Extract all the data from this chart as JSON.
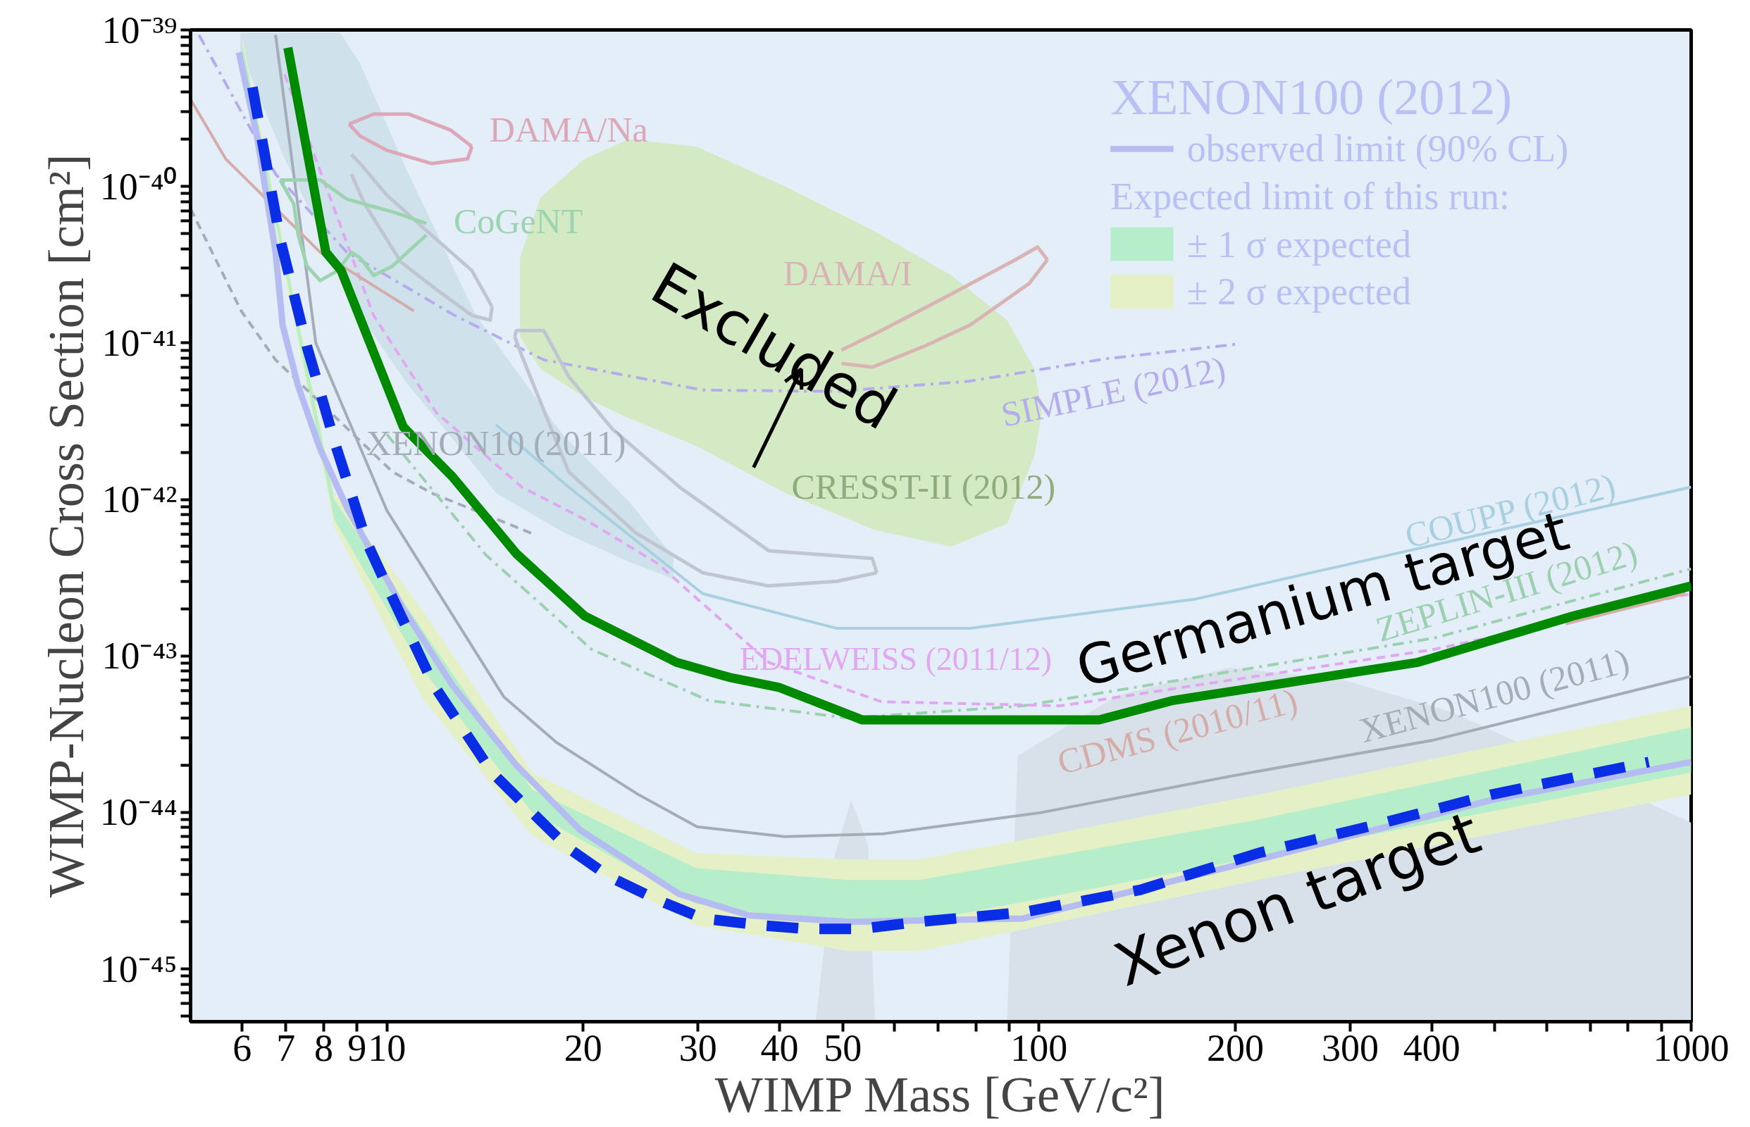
{
  "chart_data": {
    "type": "line",
    "xlabel": "WIMP Mass [GeV/c²]",
    "ylabel": "WIMP-Nucleon Cross Section [cm²]",
    "legend_title": "XENON100 (2012)",
    "legend": "top right",
    "grid": false,
    "log": "xy",
    "xlim": [
      5,
      1000
    ],
    "ylim": [
      4.6e-46,
      1e-39
    ],
    "xticks": [
      6,
      7,
      8,
      9,
      10,
      20,
      30,
      40,
      50,
      {
        "value": 60,
        "label": null
      },
      {
        "value": 70,
        "label": null
      },
      {
        "value": 80,
        "label": null
      },
      {
        "value": 90,
        "label": null
      },
      100,
      200,
      300,
      400,
      {
        "value": 500,
        "label": null
      },
      {
        "value": 600,
        "label": null
      },
      {
        "value": 700,
        "label": null
      },
      {
        "value": 800,
        "label": null
      },
      {
        "value": 900,
        "label": null
      },
      1000
    ],
    "yticks": [
      {
        "value": 5e-46,
        "label": null
      },
      {
        "value": 6e-46,
        "label": null
      },
      {
        "value": 7e-46,
        "label": null
      },
      {
        "value": 8e-46,
        "label": null
      },
      {
        "value": 9e-46,
        "label": null
      },
      {
        "value": 1e-45,
        "label": "10⁻⁴⁵"
      },
      {
        "value": 2e-45,
        "label": null
      },
      {
        "value": 3e-45,
        "label": null
      },
      {
        "value": 4e-45,
        "label": null
      },
      {
        "value": 5e-45,
        "label": null
      },
      {
        "value": 6e-45,
        "label": null
      },
      {
        "value": 7e-45,
        "label": null
      },
      {
        "value": 8e-45,
        "label": null
      },
      {
        "value": 9e-45,
        "label": null
      },
      {
        "value": 1e-44,
        "label": "10⁻⁴⁴"
      },
      {
        "value": 2e-44,
        "label": null
      },
      {
        "value": 3e-44,
        "label": null
      },
      {
        "value": 4e-44,
        "label": null
      },
      {
        "value": 5e-44,
        "label": null
      },
      {
        "value": 6e-44,
        "label": null
      },
      {
        "value": 7e-44,
        "label": null
      },
      {
        "value": 8e-44,
        "label": null
      },
      {
        "value": 9e-44,
        "label": null
      },
      {
        "value": 1e-43,
        "label": "10⁻⁴³"
      },
      {
        "value": 2e-43,
        "label": null
      },
      {
        "value": 3e-43,
        "label": null
      },
      {
        "value": 4e-43,
        "label": null
      },
      {
        "value": 5e-43,
        "label": null
      },
      {
        "value": 6e-43,
        "label": null
      },
      {
        "value": 7e-43,
        "label": null
      },
      {
        "value": 8e-43,
        "label": null
      },
      {
        "value": 9e-43,
        "label": null
      },
      {
        "value": 1e-42,
        "label": "10⁻⁴²"
      },
      {
        "value": 2e-42,
        "label": null
      },
      {
        "value": 3e-42,
        "label": null
      },
      {
        "value": 4e-42,
        "label": null
      },
      {
        "value": 5e-42,
        "label": null
      },
      {
        "value": 6e-42,
        "label": null
      },
      {
        "value": 7e-42,
        "label": null
      },
      {
        "value": 8e-42,
        "label": null
      },
      {
        "value": 9e-42,
        "label": null
      },
      {
        "value": 1e-41,
        "label": "10⁻⁴¹"
      },
      {
        "value": 2e-41,
        "label": null
      },
      {
        "value": 3e-41,
        "label": null
      },
      {
        "value": 4e-41,
        "label": null
      },
      {
        "value": 5e-41,
        "label": null
      },
      {
        "value": 6e-41,
        "label": null
      },
      {
        "value": 7e-41,
        "label": null
      },
      {
        "value": 8e-41,
        "label": null
      },
      {
        "value": 9e-41,
        "label": null
      },
      {
        "value": 1e-40,
        "label": "10⁻⁴⁰"
      },
      {
        "value": 2e-40,
        "label": null
      },
      {
        "value": 3e-40,
        "label": null
      },
      {
        "value": 4e-40,
        "label": null
      },
      {
        "value": 5e-40,
        "label": null
      },
      {
        "value": 6e-40,
        "label": null
      },
      {
        "value": 7e-40,
        "label": null
      },
      {
        "value": 8e-40,
        "label": null
      },
      {
        "value": 9e-40,
        "label": null
      },
      {
        "value": 1e-39,
        "label": "10⁻³⁹"
      }
    ],
    "annotations": [
      "Excluded",
      "Expected limit of this run:",
      "CRESST-II (2012)"
    ],
    "series": [
      {
        "type": "area",
        "color": "#d8e0ea",
        "x": [
          45.5,
          48.6,
          51.5,
          54.7,
          56
        ],
        "values": [
          4.8e-46,
          5.3e-45,
          1.2e-44,
          6.2e-45,
          4.8e-46
        ]
      },
      {
        "type": "area",
        "color": "#d8e0ea",
        "x": [
          89.3,
          92.8,
          132,
          196,
          290,
          429,
          1000
        ],
        "values": [
          4.8e-46,
          2.3e-44,
          5.6e-44,
          8.4e-44,
          7.1e-44,
          4.4e-44,
          8.6e-45
        ]
      },
      {
        "type": "area",
        "color": "#cfe2ec",
        "x": [
          5.96,
          6.97,
          8.48,
          9.1,
          10.7,
          13.7,
          14.7,
          18.6,
          23.5,
          27.5
        ],
        "values": [
          null,
          null,
          null,
          null,
          null,
          null,
          null,
          null,
          null,
          null
        ],
        "lower": [
          7.3e-40,
          1.5e-40,
          2.8e-41,
          1.5e-41,
          5.6e-42,
          1.6e-42,
          1.1e-42,
          6.2e-43,
          4e-43,
          3.1e-43
        ],
        "upper": [
          9.6e-40,
          9.6e-40,
          9.6e-40,
          6.1e-40,
          1.3e-40,
          1.5e-41,
          1e-41,
          2.6e-42,
          9.7e-43,
          4.3e-43
        ]
      },
      {
        "type": "area",
        "color": "#d4eac4",
        "x": [
          16.0,
          17.2,
          20.1,
          23.5,
          29.8,
          40.8,
          55.8,
          73.4,
          89.3,
          98.4,
          101
        ],
        "values": [
          null,
          null,
          null,
          null,
          null,
          null,
          null,
          null,
          null,
          null,
          null
        ],
        "lower": [
          1.1e-41,
          6.8e-42,
          4.5e-42,
          3.3e-42,
          2.2e-42,
          1.1e-42,
          6.4e-43,
          5e-43,
          7e-43,
          1.9e-42,
          3.6e-42
        ],
        "upper": [
          3.5e-41,
          8.5e-41,
          1.5e-40,
          2e-40,
          1.8e-40,
          1e-40,
          5.2e-41,
          2.7e-41,
          1.4e-41,
          6.8e-42,
          3.6e-42
        ]
      },
      {
        "type": "area",
        "name": "± 2 σ expected",
        "color": "#e6f0c6",
        "x": [
          6.0,
          8.3,
          11.3,
          16.7,
          29.8,
          51,
          65.5,
          217,
          1000
        ],
        "values": [
          null,
          null,
          null,
          null,
          null,
          null,
          null,
          null,
          null
        ],
        "lower": [
          6.5e-40,
          6.7e-43,
          5.5e-44,
          7.1e-45,
          1.9e-45,
          1.3e-45,
          1.3e-45,
          3.7e-45,
          1.3e-44
        ],
        "upper": [
          9e-40,
          1.1e-42,
          2e-43,
          1.8e-44,
          5.5e-45,
          5e-45,
          5e-45,
          1.3e-44,
          4.8e-44
        ]
      },
      {
        "type": "area",
        "name": "± 1 σ expected",
        "color": "#b6eecb",
        "x": [
          6.0,
          8.3,
          11.3,
          16.7,
          29.8,
          51,
          65.5,
          217,
          1000
        ],
        "values": [
          null,
          null,
          null,
          null,
          null,
          null,
          null,
          null,
          null
        ],
        "lower": [
          7.1e-40,
          7.5e-43,
          8.4e-44,
          1e-44,
          2.6e-45,
          1.9e-45,
          2e-45,
          5.2e-45,
          1.8e-44
        ],
        "upper": [
          8.3e-40,
          1e-42,
          1.5e-43,
          1.4e-44,
          4.4e-45,
          3.7e-45,
          3.7e-45,
          9e-45,
          3.5e-44
        ]
      },
      {
        "name": "XENON100 (2011)",
        "color": "#a4acb8",
        "line_style": "solid",
        "x": [
          6.75,
          7.78,
          10,
          15.1,
          18.2,
          24.3,
          29.9,
          40.7,
          57.7,
          101,
          196,
          403,
          1000
        ],
        "values": [
          9.3e-40,
          1e-41,
          8.5e-43,
          5.5e-44,
          2.8e-44,
          1.3e-44,
          8.1e-45,
          7e-45,
          7.3e-45,
          1e-44,
          1.7e-44,
          2.9e-44,
          7.4e-44
        ]
      },
      {
        "name": "XENON10 (2011)",
        "color": "#a4acb8",
        "line_style": "dashed",
        "x": [
          5.0,
          5.98,
          6.75,
          10.2,
          11.7,
          16.8
        ],
        "values": [
          7.2e-41,
          1.6e-41,
          7.8e-42,
          1.5e-42,
          1.1e-42,
          6e-43
        ]
      },
      {
        "name": "ZEPLIN-III (2012)",
        "color": "#9cd0b0",
        "line_style": "dashdot",
        "x": [
          10,
          14.2,
          20.6,
          31.1,
          51.1,
          94.6,
          403,
          1000
        ],
        "values": [
          2.6e-42,
          4.4e-43,
          1.1e-43,
          5.2e-44,
          4e-44,
          4.8e-44,
          1.3e-43,
          3.6e-43
        ]
      },
      {
        "name": "EDELWEISS (2011/12)",
        "color": "#e0a8f0",
        "line_style": "dashed",
        "x": [
          6.97,
          9.54,
          11.9,
          16.1,
          20.3,
          26.0,
          38.5,
          57.3,
          108,
          403,
          1000
        ],
        "values": [
          5.2e-40,
          1.5e-41,
          3.6e-42,
          1.2e-42,
          7.3e-43,
          3.9e-43,
          9.1e-44,
          5.1e-44,
          4.8e-44,
          1.1e-43,
          2.5e-43
        ]
      },
      {
        "name": "CDMS (2010/11)",
        "color": "#d4aca8",
        "line_style": "solid",
        "x": [
          5.0,
          5.66,
          7.9,
          11.0,
          100,
          642,
          980
        ],
        "values": [
          3.6e-40,
          1.5e-40,
          3.8e-41,
          1.6e-41,
          null,
          1.6e-43,
          2.5e-43
        ]
      },
      {
        "name": "COUPP (2012)",
        "color": "#a8d0e0",
        "line_style": "solid",
        "x": [
          14.7,
          19.0,
          30.5,
          49.0,
          78.4,
          173,
          385,
          1000
        ],
        "values": [
          3e-42,
          1.2e-42,
          2.5e-43,
          1.5e-43,
          1.5e-43,
          2.3e-43,
          4.9e-43,
          1.2e-42
        ]
      },
      {
        "name": "SIMPLE (2012)",
        "color": "#b4acec",
        "line_style": "dashdot",
        "x": [
          5.15,
          6.75,
          8.68,
          12.7,
          17.4,
          30.5,
          49.0,
          78.4,
          126,
          200
        ],
        "values": [
          9.3e-40,
          1.2e-40,
          3.8e-41,
          1.5e-41,
          7.8e-42,
          5e-42,
          4.9e-42,
          5.7e-42,
          7.9e-42,
          9.8e-42
        ]
      },
      {
        "color": "#c0c6d0",
        "line_style": "solid",
        "x": [
          8.82,
          9.1,
          10,
          11.7,
          13.5,
          14.5
        ],
        "values": [
          1.6e-40,
          1.4e-40,
          8.8e-41,
          4.9e-41,
          2.9e-41,
          1.7e-41
        ]
      },
      {
        "color": "#c0c6d0",
        "line_style": "solid",
        "x": [
          8.82,
          9.25,
          10.5,
          11.9,
          13.5,
          14.4,
          14.5
        ],
        "values": [
          1.2e-40,
          7.7e-41,
          3.3e-41,
          2.2e-41,
          1.5e-41,
          1.4e-41,
          1.7e-41
        ]
      },
      {
        "color": "#c0c6d0",
        "line_style": "solid",
        "x": [
          15.7,
          15.8,
          17.4,
          19.0,
          22.2,
          28.1,
          38.5,
          55.5,
          56.4
        ],
        "values": [
          1.1e-41,
          1.2e-41,
          1.2e-41,
          6.1e-42,
          2.8e-42,
          1.2e-42,
          4.7e-43,
          4.2e-43,
          3.4e-43
        ]
      },
      {
        "color": "#c0c6d0",
        "line_style": "solid",
        "x": [
          15.7,
          16.1,
          19.0,
          24.1,
          30.5,
          38.5,
          49.0,
          56.4
        ],
        "values": [
          1.1e-41,
          8.3e-42,
          1.5e-42,
          6.1e-43,
          3.4e-43,
          2.8e-43,
          3e-43,
          3.4e-43
        ]
      },
      {
        "name": "DAMA/Na",
        "color": "#dca8b8",
        "line_style": "solid",
        "x": [
          8.75,
          9.54,
          10.8,
          12.5,
          13.5
        ],
        "values": [
          2.5e-40,
          2.9e-40,
          2.9e-40,
          2.3e-40,
          1.8e-40
        ]
      },
      {
        "color": "#dca8b8",
        "line_style": "solid",
        "x": [
          8.75,
          9.1,
          10,
          11.7,
          13.3,
          13.5
        ],
        "values": [
          2.5e-40,
          2.1e-40,
          1.7e-40,
          1.4e-40,
          1.5e-40,
          1.8e-40
        ]
      },
      {
        "name": "DAMA/I",
        "color": "#d8b4b4",
        "line_style": "solid",
        "x": [
          49.8,
          57.3,
          72.5,
          92,
          99.5,
          103
        ],
        "values": [
          9e-42,
          1.2e-41,
          2e-41,
          3.4e-41,
          4.1e-41,
          3.4e-41
        ]
      },
      {
        "color": "#d8b4b4",
        "line_style": "solid",
        "x": [
          49.8,
          55.5,
          67,
          78.4,
          96.6,
          103
        ],
        "values": [
          7.4e-42,
          7e-42,
          9.6e-42,
          1.3e-41,
          2.4e-41,
          3.4e-41
        ]
      },
      {
        "name": "CoGeNT",
        "color": "#9cd4b0",
        "line_style": "solid",
        "x": [
          6.86,
          7.42,
          7.9,
          8.68,
          10.3,
          11.5
        ],
        "values": [
          1.1e-40,
          1.1e-40,
          1.1e-40,
          8.3e-41,
          6.8e-41,
          5.8e-41
        ]
      },
      {
        "color": "#9cd4b0",
        "line_style": "solid",
        "x": [
          6.86,
          7.2,
          7.31,
          7.54,
          7.9,
          8.41,
          8.82,
          9.1,
          9.54,
          10.2,
          11.5
        ],
        "values": [
          1.1e-40,
          7.7e-41,
          4.9e-41,
          3.1e-41,
          2.5e-41,
          2.9e-41,
          3.8e-41,
          3.5e-41,
          2.7e-41,
          3.1e-41,
          4.9e-41
        ]
      },
      {
        "name": "observed limit (90% CL)",
        "color": "#b4bcf2",
        "line_style": "solid",
        "x": [
          5.93,
          6.32,
          6.75,
          6.92,
          7.31,
          7.9,
          8.68,
          10.6,
          12.6,
          15.8,
          19.8,
          28.1,
          35.9,
          51.1,
          94.6,
          217,
          494,
          1000
        ],
        "values": [
          7.2e-40,
          2.1e-40,
          3.8e-41,
          1.3e-41,
          5.3e-42,
          2.1e-42,
          8.9e-43,
          2e-43,
          6.5e-44,
          2e-44,
          7.7e-45,
          3e-45,
          2.2e-45,
          2e-45,
          2.1e-45,
          5e-45,
          1.2e-44,
          2.1e-44
        ]
      },
      {
        "name": "Xenon target",
        "color": "#0a2ee6",
        "line_style": "dashed",
        "x": [
          6.22,
          6.86,
          7.54,
          8.35,
          9.32,
          10,
          11.8,
          14.5,
          16.7,
          19.0,
          21.9,
          25.8,
          30.5,
          37.5,
          44.2,
          53.2,
          65.5,
          94.6,
          143,
          217,
          327,
          494,
          861
        ],
        "values": [
          4.3e-40,
          4.6e-41,
          9.5e-42,
          2.2e-42,
          5.3e-43,
          2.8e-43,
          6.5e-44,
          1.8e-44,
          1e-44,
          5.9e-45,
          3.9e-45,
          2.8e-45,
          2.1e-45,
          1.9e-45,
          1.8e-45,
          1.8e-45,
          2e-45,
          2.3e-45,
          3.2e-45,
          5.5e-45,
          8.3e-45,
          1.3e-44,
          2.1e-44
        ]
      },
      {
        "name": "Germanium target",
        "color": "#008a00",
        "line_style": "solid",
        "x": [
          7.05,
          8.06,
          8.51,
          10.6,
          12.6,
          15.8,
          20.1,
          27.8,
          33.5,
          39.9,
          53.6,
          123.6,
          160.7,
          381,
          659,
          1000
        ],
        "values": [
          7.7e-40,
          3.8e-41,
          2.9e-41,
          2.9e-42,
          1.4e-42,
          4.5e-43,
          1.8e-43,
          9.1e-44,
          7.3e-44,
          6.3e-44,
          3.9e-44,
          3.9e-44,
          5.2e-44,
          9.1e-44,
          1.8e-43,
          2.8e-43
        ]
      }
    ]
  }
}
